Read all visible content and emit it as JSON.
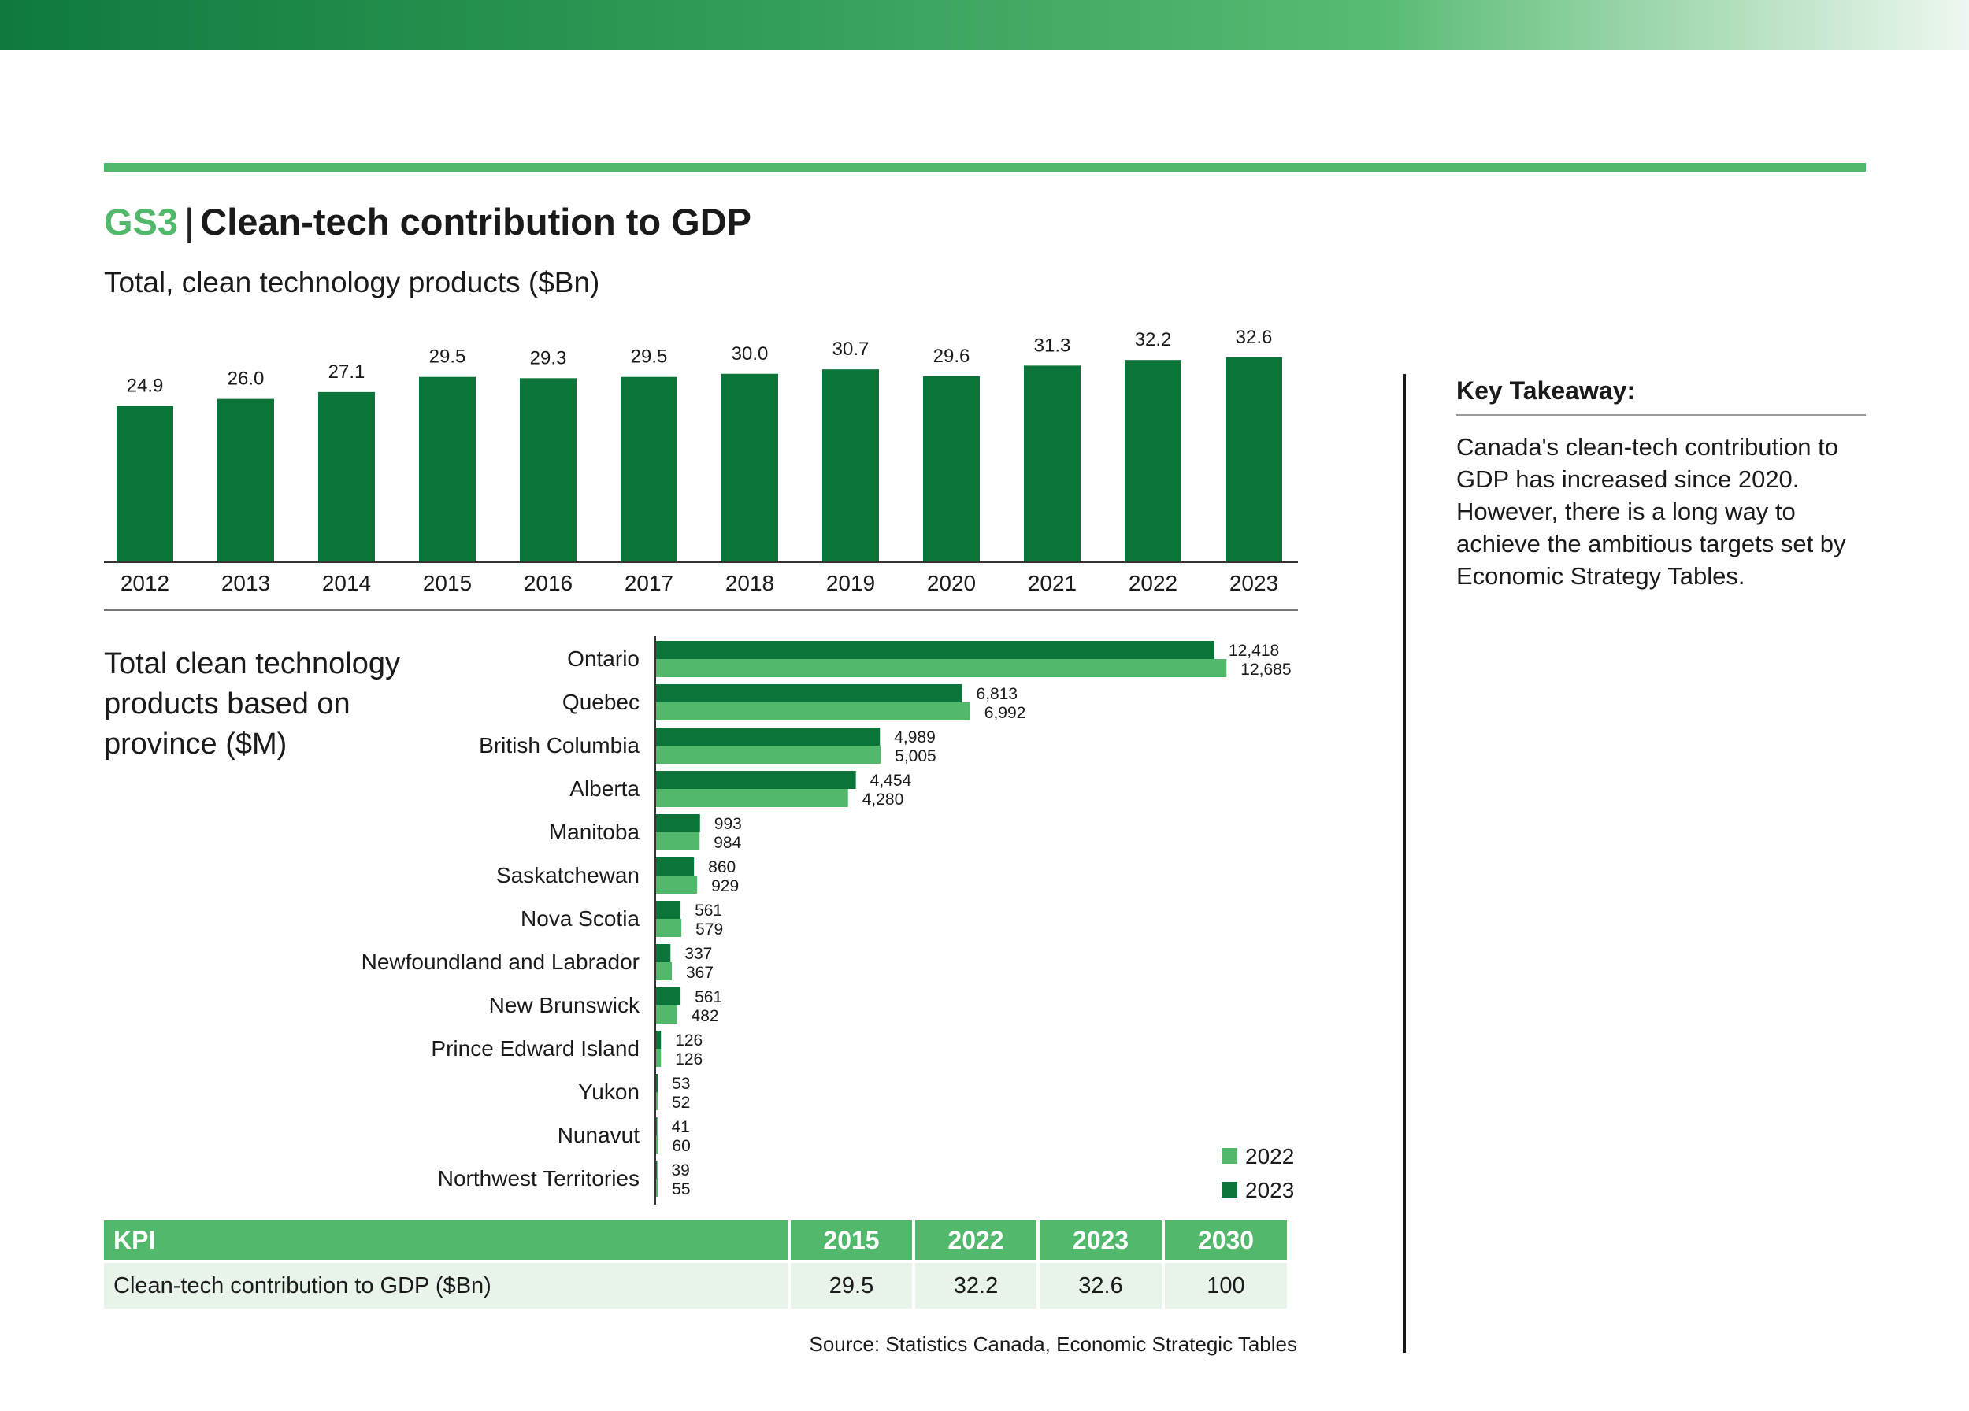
{
  "header": {
    "code": "GS3",
    "separator": "|",
    "title": "Clean-tech contribution to GDP",
    "subtitle": "Total, clean technology products ($Bn)"
  },
  "province_title": "Total clean technology products based on province ($M)",
  "key_takeaway": {
    "title": "Key Takeaway:",
    "text": "Canada's clean-tech contribution to GDP has increased since 2020. However, there is a long way to achieve the ambitious targets set by Economic Strategy Tables."
  },
  "colors": {
    "dark_green": "#0b7438",
    "light_green": "#52b86b",
    "accent": "#52b86b"
  },
  "chart_data": [
    {
      "type": "bar",
      "title": "Total, clean technology products ($Bn)",
      "categories": [
        "2012",
        "2013",
        "2014",
        "2015",
        "2016",
        "2017",
        "2018",
        "2019",
        "2020",
        "2021",
        "2022",
        "2023"
      ],
      "values": [
        24.9,
        26.0,
        27.1,
        29.5,
        29.3,
        29.5,
        30.0,
        30.7,
        29.6,
        31.3,
        32.2,
        32.6
      ],
      "value_labels": [
        "24.9",
        "26.0",
        "27.1",
        "29.5",
        "29.3",
        "29.5",
        "30.0",
        "30.7",
        "29.6",
        "31.3",
        "32.2",
        "32.6"
      ],
      "ylim": [
        0,
        40
      ],
      "grid": false
    },
    {
      "type": "bar",
      "orientation": "horizontal",
      "title": "Total clean technology products based on province ($M)",
      "categories": [
        "Ontario",
        "Quebec",
        "British Columbia",
        "Alberta",
        "Manitoba",
        "Saskatchewan",
        "Nova Scotia",
        "Newfoundland and Labrador",
        "New Brunswick",
        "Prince Edward Island",
        "Yukon",
        "Nunavut",
        "Northwest Territories"
      ],
      "series": [
        {
          "name": "2023",
          "color": "#0b7438",
          "values": [
            12418,
            6813,
            4989,
            4454,
            993,
            860,
            561,
            337,
            561,
            126,
            53,
            41,
            39
          ],
          "labels": [
            "12,418",
            "6,813",
            "4,989",
            "4,454",
            "993",
            "860",
            "561",
            "337",
            "561",
            "126",
            "53",
            "41",
            "39"
          ]
        },
        {
          "name": "2022",
          "color": "#52b86b",
          "values": [
            12685,
            6992,
            5005,
            4280,
            984,
            929,
            579,
            367,
            482,
            126,
            52,
            60,
            55
          ],
          "labels": [
            "12,685",
            "6,992",
            "5,005",
            "4,280",
            "984",
            "929",
            "579",
            "367",
            "482",
            "126",
            "52",
            "60",
            "55"
          ]
        }
      ],
      "xlim": [
        0,
        13000
      ],
      "legend": {
        "position": "bottom-right",
        "entries": [
          "2022",
          "2023"
        ]
      },
      "grid": false
    }
  ],
  "kpi_table": {
    "headers": [
      "KPI",
      "2015",
      "2022",
      "2023",
      "2030"
    ],
    "rows": [
      [
        "Clean-tech contribution to GDP ($Bn)",
        "29.5",
        "32.2",
        "32.6",
        "100"
      ]
    ]
  },
  "source": "Source: Statistics Canada, Economic Strategic Tables"
}
